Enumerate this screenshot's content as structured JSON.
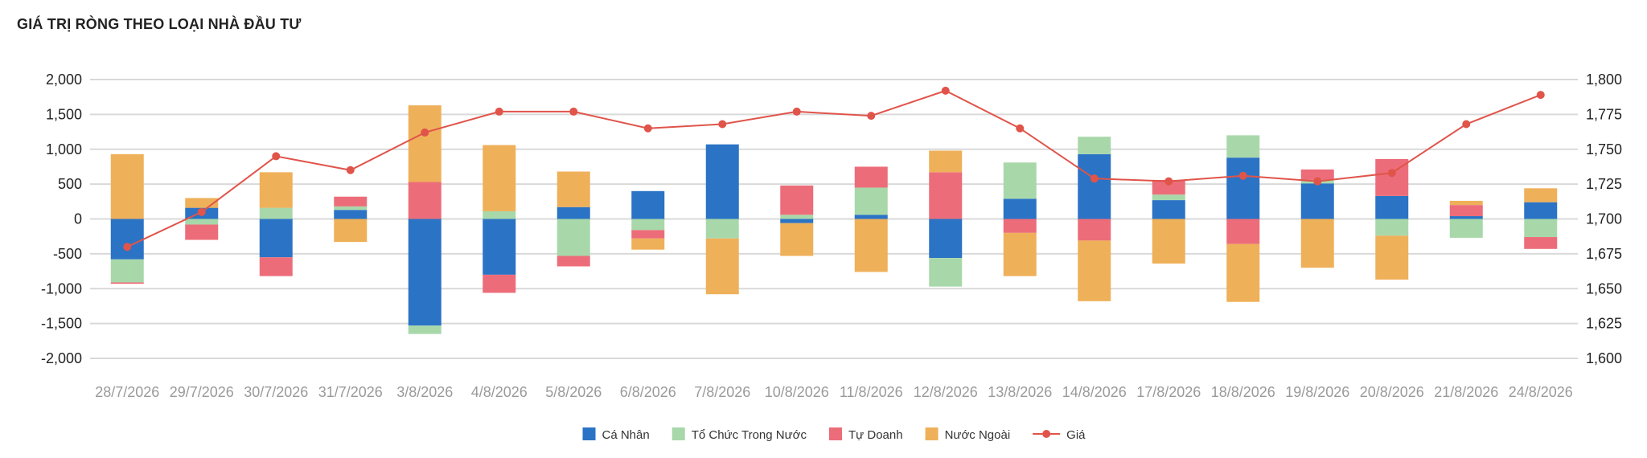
{
  "chart_data": {
    "type": "bar",
    "title": "GIÁ TRỊ RÒNG THEO LOẠI NHÀ ĐẦU TƯ",
    "categories": [
      "28/7/2026",
      "29/7/2026",
      "30/7/2026",
      "31/7/2026",
      "3/8/2026",
      "4/8/2026",
      "5/8/2026",
      "6/8/2026",
      "7/8/2026",
      "10/8/2026",
      "11/8/2026",
      "12/8/2026",
      "13/8/2026",
      "14/8/2026",
      "17/8/2026",
      "18/8/2026",
      "19/8/2026",
      "20/8/2026",
      "21/8/2026",
      "24/8/2026"
    ],
    "series": [
      {
        "name": "Cá Nhân",
        "color": "#2b73c5",
        "values": [
          -580,
          160,
          -550,
          130,
          -1530,
          -800,
          170,
          400,
          1070,
          -60,
          60,
          -560,
          290,
          930,
          270,
          880,
          510,
          330,
          40,
          240
        ]
      },
      {
        "name": "Tổ Chức Trong Nước",
        "color": "#a8d8aa",
        "values": [
          -330,
          -80,
          160,
          50,
          -120,
          110,
          -530,
          -160,
          -280,
          60,
          390,
          -410,
          520,
          250,
          80,
          320,
          50,
          -240,
          -270,
          -260
        ]
      },
      {
        "name": "Tự Doanh",
        "color": "#ec6d79",
        "values": [
          -20,
          -220,
          -270,
          140,
          530,
          -260,
          -150,
          -120,
          0,
          420,
          300,
          670,
          -200,
          -310,
          210,
          -360,
          150,
          530,
          160,
          -170
        ]
      },
      {
        "name": "Nước Ngoài",
        "color": "#efb05a",
        "values": [
          930,
          140,
          510,
          -330,
          1100,
          950,
          510,
          -160,
          -800,
          -470,
          -760,
          310,
          -620,
          -870,
          -640,
          -830,
          -700,
          -630,
          60,
          200
        ]
      }
    ],
    "line_series": {
      "name": "Giá",
      "color": "#e0544a",
      "axis": "right",
      "values": [
        1680,
        1705,
        1745,
        1735,
        1762,
        1777,
        1777,
        1765,
        1768,
        1777,
        1774,
        1792,
        1765,
        1729,
        1727,
        1731,
        1727,
        1733,
        1768,
        1789
      ]
    },
    "y_left": {
      "min": -2000,
      "max": 2000,
      "ticks": [
        2000,
        1500,
        1000,
        500,
        0,
        -500,
        -1000,
        -1500,
        -2000
      ],
      "tick_labels": [
        "2,000",
        "1,500",
        "1,000",
        "500",
        "0",
        "-500",
        "-1,000",
        "-1,500",
        "-2,000"
      ]
    },
    "y_right": {
      "min": 1600,
      "max": 1800,
      "ticks": [
        1800,
        1775,
        1750,
        1725,
        1700,
        1675,
        1650,
        1625,
        1600
      ],
      "tick_labels": [
        "1,800",
        "1,775",
        "1,750",
        "1,725",
        "1,700",
        "1,675",
        "1,650",
        "1,625",
        "1,600"
      ]
    },
    "grid": true,
    "legend_position": "bottom"
  }
}
